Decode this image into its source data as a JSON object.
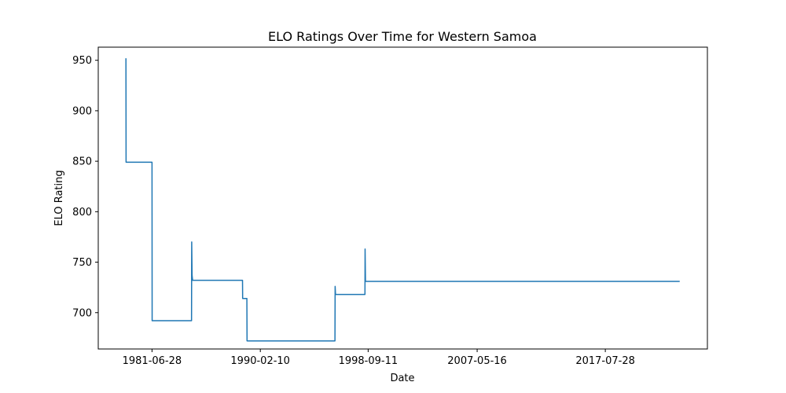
{
  "chart_data": {
    "type": "line",
    "title": "ELO Ratings Over Time for Western Samoa",
    "xlabel": "Date",
    "ylabel": "ELO Rating",
    "x_tick_labels": [
      "1981-06-28",
      "1990-02-10",
      "1998-09-11",
      "2007-05-16",
      "2017-07-28"
    ],
    "y_tick_labels": [
      "700",
      "750",
      "800",
      "850",
      "900",
      "950"
    ],
    "ylim": [
      664,
      963
    ],
    "grid": false,
    "series": [
      {
        "color": "#1f77b4",
        "points": [
          [
            "1979-06-01",
            952
          ],
          [
            "1979-06-05",
            849
          ],
          [
            "1981-06-28",
            849
          ],
          [
            "1981-07-02",
            692
          ],
          [
            "1984-08-20",
            692
          ],
          [
            "1984-08-25",
            770
          ],
          [
            "1984-09-05",
            737
          ],
          [
            "1984-09-20",
            732
          ],
          [
            "1988-09-10",
            732
          ],
          [
            "1988-09-14",
            714
          ],
          [
            "1989-01-15",
            714
          ],
          [
            "1989-01-20",
            672
          ],
          [
            "1996-01-20",
            672
          ],
          [
            "1996-01-25",
            726
          ],
          [
            "1996-02-05",
            718
          ],
          [
            "1998-06-10",
            718
          ],
          [
            "1998-06-14",
            763
          ],
          [
            "1998-06-25",
            731
          ],
          [
            "2023-06-30",
            731
          ]
        ]
      }
    ]
  }
}
